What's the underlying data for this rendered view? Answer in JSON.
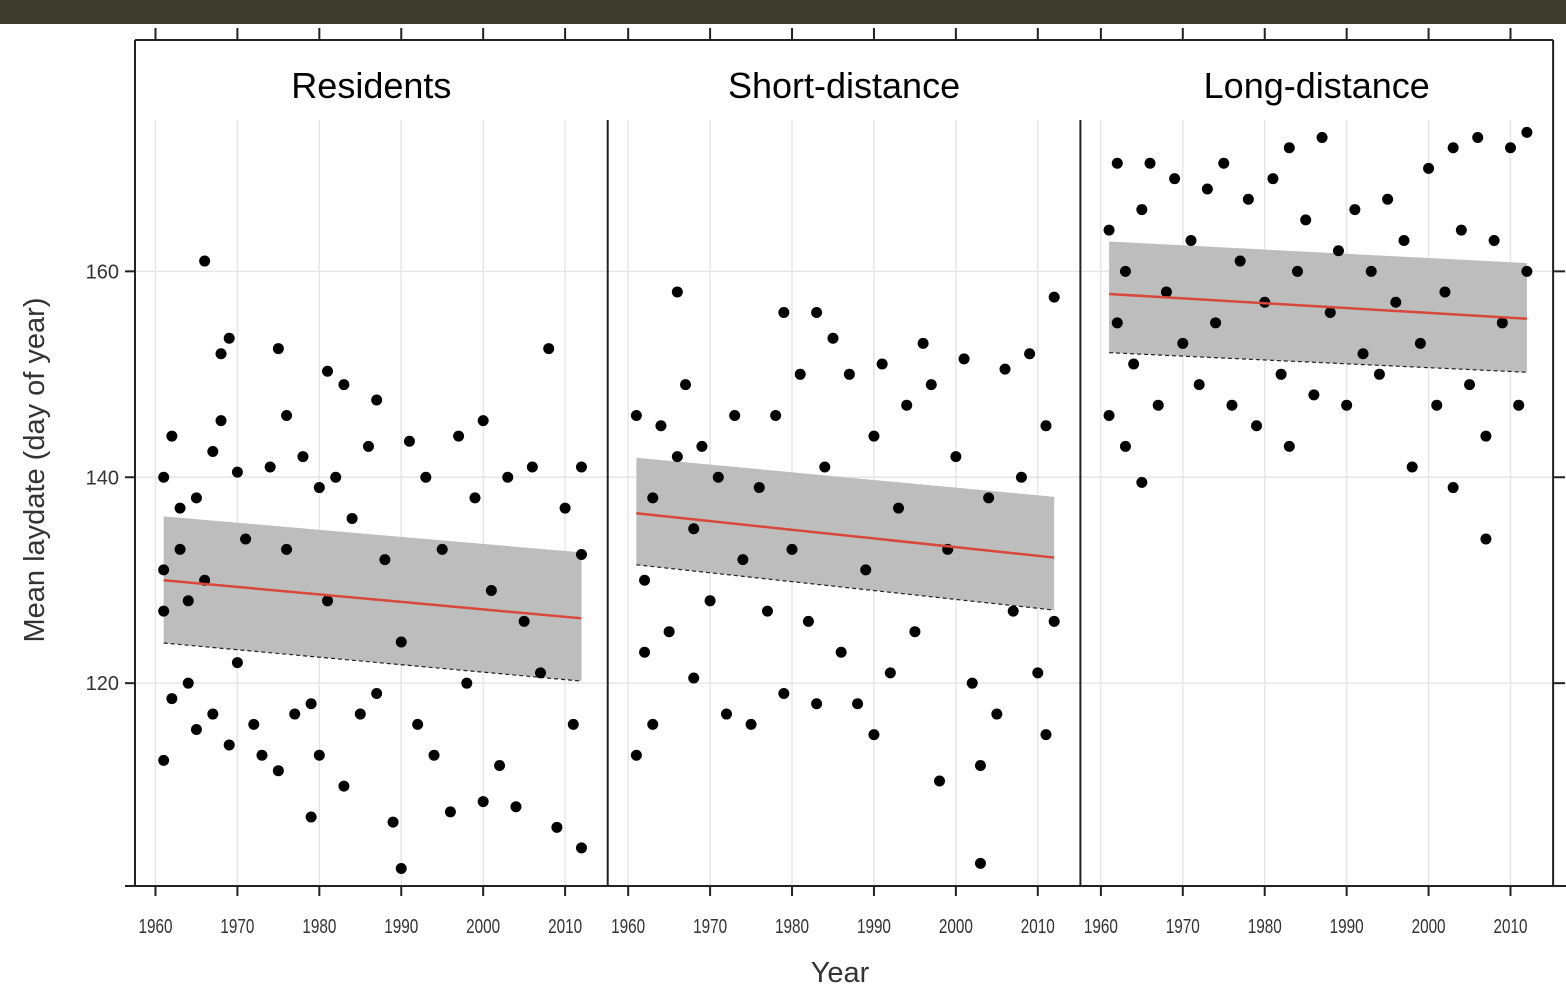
{
  "chart_data": {
    "type": "scatter",
    "y_label": "Mean laydate  (day of year)",
    "x_label": "Year",
    "xlim": [
      1957.5,
      2015.2
    ],
    "xticks": [
      1960,
      1970,
      1980,
      1990,
      2000,
      2010
    ],
    "ylim": [
      100.3,
      174.7
    ],
    "yticks": [
      120,
      140,
      160
    ],
    "grid": true,
    "point_color": "#000000",
    "trend_color": "#d9473a",
    "band_color": "#bdbdbd",
    "panels": [
      {
        "title": "Residents",
        "x": [
          1961,
          1961,
          1961,
          1961,
          1962,
          1962,
          1963,
          1963,
          1964,
          1964,
          1965,
          1965,
          1966,
          1966,
          1967,
          1967,
          1968,
          1968,
          1969,
          1969,
          1970,
          1970,
          1971,
          1972,
          1973,
          1974,
          1975,
          1975,
          1976,
          1976,
          1977,
          1978,
          1979,
          1979,
          1980,
          1980,
          1981,
          1981,
          1982,
          1983,
          1983,
          1984,
          1985,
          1986,
          1987,
          1987,
          1988,
          1989,
          1990,
          1990,
          1991,
          1992,
          1993,
          1994,
          1995,
          1996,
          1997,
          1998,
          1999,
          2000,
          2000,
          2001,
          2002,
          2003,
          2004,
          2005,
          2006,
          2007,
          2008,
          2009,
          2010,
          2011,
          2012,
          2012,
          2012
        ],
        "y": [
          112.5,
          127,
          131,
          140,
          144,
          118.5,
          137,
          133,
          120,
          128,
          115.5,
          138,
          161,
          130,
          117,
          142.5,
          145.5,
          152,
          153.5,
          114,
          140.5,
          122,
          134,
          116,
          113,
          141,
          152.5,
          111.5,
          146,
          133,
          117,
          142,
          107,
          118,
          139,
          113,
          150.3,
          128,
          140,
          149,
          110,
          136,
          117,
          143,
          147.5,
          119,
          132,
          106.5,
          102,
          124,
          143.5,
          116,
          140,
          113,
          133,
          107.5,
          144,
          120,
          138,
          145.5,
          108.5,
          129,
          112,
          140,
          108,
          126,
          141,
          121,
          152.5,
          106,
          137,
          116,
          104,
          141,
          132.5
        ],
        "trend": {
          "x": [
            1961,
            2012
          ],
          "y": [
            130.0,
            126.3
          ],
          "lower": [
            123.9,
            120.2
          ],
          "upper": [
            136.2,
            132.7
          ]
        }
      },
      {
        "title": "Short-distance",
        "x": [
          1961,
          1961,
          1962,
          1962,
          1963,
          1963,
          1964,
          1965,
          1966,
          1966,
          1967,
          1968,
          1968,
          1969,
          1970,
          1971,
          1972,
          1973,
          1974,
          1975,
          1976,
          1977,
          1978,
          1979,
          1979,
          1980,
          1981,
          1982,
          1983,
          1983,
          1984,
          1985,
          1986,
          1987,
          1988,
          1989,
          1990,
          1990,
          1991,
          1992,
          1993,
          1994,
          1995,
          1996,
          1997,
          1998,
          1999,
          2000,
          2001,
          2002,
          2003,
          2003,
          2004,
          2005,
          2006,
          2007,
          2008,
          2009,
          2010,
          2011,
          2011,
          2012,
          2012
        ],
        "y": [
          113,
          146,
          130,
          123,
          138,
          116,
          145,
          125,
          158,
          142,
          149,
          120.5,
          135,
          143,
          128,
          140,
          117,
          146,
          132,
          116,
          139,
          127,
          146,
          156,
          119,
          133,
          150,
          126,
          156,
          118,
          141,
          153.5,
          123,
          150,
          118,
          131,
          115,
          144,
          151,
          121,
          137,
          147,
          125,
          153,
          149,
          110.5,
          133,
          142,
          151.5,
          120,
          112,
          102.5,
          138,
          117,
          150.5,
          127,
          140,
          152,
          121,
          115,
          145,
          157.5,
          126
        ],
        "trend": {
          "x": [
            1961,
            2012
          ],
          "y": [
            136.5,
            132.2
          ],
          "lower": [
            131.5,
            127.1
          ],
          "upper": [
            141.9,
            138.1
          ]
        }
      },
      {
        "title": "Long-distance",
        "x": [
          1961,
          1961,
          1962,
          1962,
          1963,
          1963,
          1964,
          1965,
          1965,
          1966,
          1967,
          1968,
          1969,
          1970,
          1971,
          1972,
          1973,
          1974,
          1975,
          1976,
          1977,
          1978,
          1979,
          1980,
          1981,
          1982,
          1983,
          1983,
          1984,
          1985,
          1986,
          1987,
          1988,
          1989,
          1990,
          1991,
          1992,
          1993,
          1994,
          1995,
          1996,
          1997,
          1998,
          1999,
          2000,
          2001,
          2002,
          2003,
          2003,
          2004,
          2005,
          2006,
          2007,
          2007,
          2008,
          2009,
          2010,
          2011,
          2012,
          2012
        ],
        "y": [
          146,
          164,
          155,
          170.5,
          143,
          160,
          151,
          139.5,
          166,
          170.5,
          147,
          158,
          169,
          153,
          163,
          149,
          168,
          155,
          170.5,
          147,
          161,
          167,
          145,
          157,
          169,
          150,
          172,
          143,
          160,
          165,
          148,
          173,
          156,
          162,
          147,
          166,
          152,
          160,
          150,
          167,
          157,
          163,
          141,
          153,
          170,
          147,
          158,
          139,
          172,
          164,
          149,
          173,
          134,
          144,
          163,
          155,
          172,
          147,
          173.5,
          160
        ],
        "trend": {
          "x": [
            1961,
            2012
          ],
          "y": [
            157.8,
            155.4
          ],
          "lower": [
            152.1,
            150.2
          ],
          "upper": [
            162.9,
            160.8
          ]
        }
      }
    ]
  }
}
